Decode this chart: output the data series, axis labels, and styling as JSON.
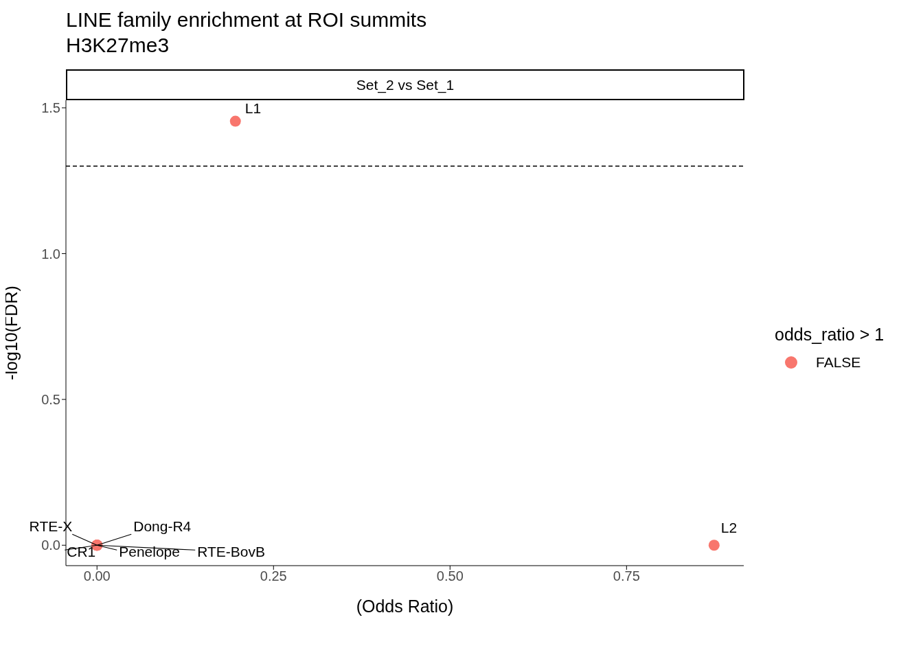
{
  "chart_data": {
    "type": "scatter",
    "title": "LINE family enrichment at ROI summits",
    "subtitle": "H3K27me3",
    "xlabel": "(Odds Ratio)",
    "ylabel": "-log10(FDR)",
    "legend_title": "odds_ratio > 1",
    "series": [
      {
        "name": "FALSE",
        "color": "#f8766d",
        "x": [
          0.196,
          0.874,
          0,
          0,
          0,
          0,
          0
        ],
        "values": [
          1.454,
          0,
          0,
          0,
          0,
          0,
          0
        ]
      }
    ],
    "xlim": [
      -0.044,
      0.916
    ],
    "xticks": [
      {
        "value": 0,
        "label": "0.00"
      },
      0.25,
      {
        "value": 0.5,
        "label": "0.50"
      },
      0.75
    ],
    "ylim": [
      -0.07,
      1.526
    ],
    "yticks": [
      {
        "value": 0,
        "label": "0.0"
      },
      0.5,
      {
        "value": 1,
        "label": "1.0"
      },
      1.5
    ],
    "ref_lines": [
      {
        "axis": "y",
        "value": 1.3,
        "line_style": "dashed"
      }
    ],
    "annotations": [
      "Set_2 vs Set_1",
      {
        "text": "L1",
        "x": 0.196,
        "y": 1.454
      },
      {
        "text": "L2",
        "x": 0.874,
        "y": 0
      },
      {
        "text": "RTE-X",
        "x": 0,
        "y": 0
      },
      {
        "text": "Dong-R4",
        "x": 0,
        "y": 0
      },
      {
        "text": "CR1",
        "x": 0,
        "y": 0
      },
      {
        "text": "Penelope",
        "x": 0,
        "y": 0
      },
      {
        "text": "RTE-BovB",
        "x": 0,
        "y": 0
      }
    ],
    "grid": false,
    "legend": "right",
    "marker": "circle"
  }
}
